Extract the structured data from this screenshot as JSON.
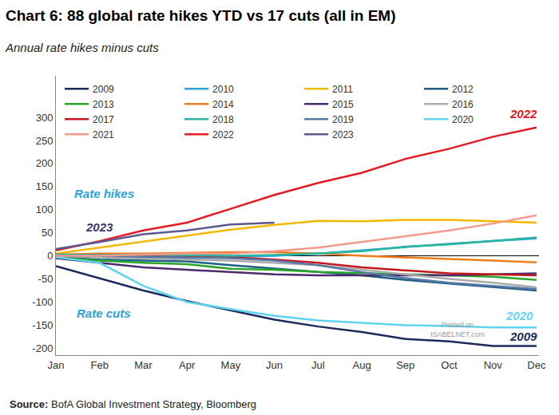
{
  "chart_data": {
    "type": "line",
    "title": "Chart 6: 88 global rate hikes YTD vs 17 cuts (all in EM)",
    "subtitle": "Annual rate hikes minus cuts",
    "source_label": "Source:",
    "source": "BofA Global Investment Strategy, Bloomberg",
    "watermark": [
      "Posted on",
      "ISABELNET.com"
    ],
    "categories": [
      "Jan",
      "Feb",
      "Mar",
      "Apr",
      "May",
      "Jun",
      "Jul",
      "Aug",
      "Sep",
      "Oct",
      "Nov",
      "Dec"
    ],
    "series": [
      {
        "name": "2009",
        "color": "#1b2a5c",
        "values": [
          -22,
          -48,
          -75,
          -98,
          -118,
          -138,
          -153,
          -165,
          -180,
          -185,
          -195,
          -195
        ]
      },
      {
        "name": "2010",
        "color": "#2ea3d9",
        "values": [
          0,
          -3,
          -5,
          -5,
          -3,
          0,
          5,
          12,
          20,
          26,
          32,
          38
        ]
      },
      {
        "name": "2011",
        "color": "#f5b800",
        "values": [
          5,
          18,
          32,
          45,
          57,
          67,
          76,
          75,
          78,
          78,
          75,
          72
        ]
      },
      {
        "name": "2012",
        "color": "#1f5f87",
        "values": [
          -3,
          -8,
          -10,
          -12,
          -20,
          -28,
          -35,
          -42,
          -52,
          -60,
          -68,
          -75
        ]
      },
      {
        "name": "2013",
        "color": "#2aa52a",
        "values": [
          -3,
          -10,
          -15,
          -18,
          -28,
          -30,
          -35,
          -38,
          -40,
          -42,
          -45,
          -52
        ]
      },
      {
        "name": "2014",
        "color": "#f07d1a",
        "values": [
          3,
          5,
          5,
          7,
          8,
          8,
          5,
          0,
          -3,
          -6,
          -10,
          -14
        ]
      },
      {
        "name": "2015",
        "color": "#4b2a6e",
        "values": [
          -5,
          -15,
          -25,
          -30,
          -35,
          -40,
          -42,
          -42,
          -42,
          -42,
          -40,
          -38
        ]
      },
      {
        "name": "2016",
        "color": "#aaaaaa",
        "values": [
          0,
          -3,
          -6,
          -8,
          -10,
          -15,
          -20,
          -30,
          -40,
          -50,
          -58,
          -68
        ]
      },
      {
        "name": "2017",
        "color": "#c4161c",
        "values": [
          2,
          2,
          0,
          -2,
          -3,
          -8,
          -15,
          -25,
          -32,
          -38,
          -40,
          -42
        ]
      },
      {
        "name": "2018",
        "color": "#2bb5a0",
        "values": [
          3,
          2,
          3,
          2,
          0,
          2,
          5,
          10,
          20,
          25,
          32,
          40
        ]
      },
      {
        "name": "2019",
        "color": "#5878a8",
        "values": [
          0,
          0,
          -2,
          -3,
          -5,
          -10,
          -20,
          -35,
          -48,
          -58,
          -65,
          -72
        ]
      },
      {
        "name": "2020",
        "color": "#5fd3f0",
        "values": [
          -3,
          -15,
          -65,
          -100,
          -115,
          -130,
          -140,
          -145,
          -150,
          -152,
          -155,
          -155
        ]
      },
      {
        "name": "2021",
        "color": "#f49a8c",
        "values": [
          0,
          0,
          3,
          5,
          5,
          10,
          18,
          30,
          42,
          55,
          70,
          88
        ]
      },
      {
        "name": "2022",
        "color": "#e31b23",
        "values": [
          12,
          32,
          55,
          72,
          102,
          132,
          158,
          180,
          210,
          232,
          258,
          278
        ]
      },
      {
        "name": "2023",
        "color": "#5a5a8e",
        "values": [
          15,
          30,
          47,
          55,
          68,
          72,
          null,
          null,
          null,
          null,
          null,
          null
        ]
      }
    ],
    "annotations": [
      {
        "text": "Rate hikes",
        "x": 1.1,
        "y": 135,
        "color": "#2ea3d9"
      },
      {
        "text": "Rate cuts",
        "x": 1.1,
        "y": -125,
        "color": "#2ea3d9"
      },
      {
        "text": "2023",
        "x": 1.0,
        "y": 62,
        "color": "#3a3a6e"
      },
      {
        "text": "2022",
        "x": 10.7,
        "y": 308,
        "color": "#e31b23"
      },
      {
        "text": "2020",
        "x": 10.6,
        "y": -130,
        "color": "#5fd3f0"
      },
      {
        "text": "2009",
        "x": 10.7,
        "y": -175,
        "color": "#1b2a5c"
      }
    ],
    "ylim": [
      -215,
      390
    ],
    "yticks": [
      -200,
      -150,
      -100,
      -50,
      0,
      50,
      100,
      150,
      200,
      250,
      300
    ],
    "grid": false,
    "legend": "top left"
  }
}
